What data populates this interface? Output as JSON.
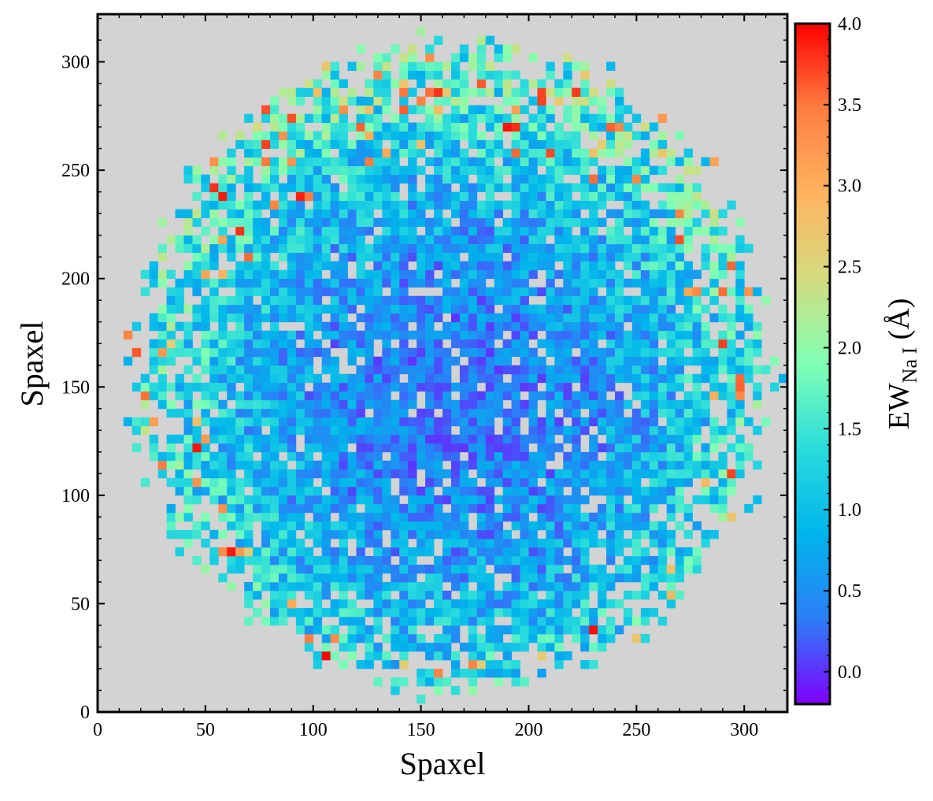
{
  "chart_data": {
    "type": "heatmap",
    "title": "",
    "xlabel": "Spaxel",
    "ylabel": "Spaxel",
    "xlim": [
      0,
      320
    ],
    "ylim": [
      0,
      322
    ],
    "xticks": [
      0,
      50,
      100,
      150,
      200,
      250,
      300
    ],
    "yticks": [
      0,
      50,
      100,
      150,
      200,
      250,
      300
    ],
    "grid": false,
    "background_color": "#d3d3d3",
    "pixel_size": 4,
    "colormap": "rainbow",
    "colorbar": {
      "label_main": "EW",
      "label_sub": "Na I",
      "label_unit": " (Å)",
      "range": [
        -0.2,
        4.0
      ],
      "ticks": [
        0.0,
        0.5,
        1.0,
        1.5,
        2.0,
        2.5,
        3.0,
        3.5,
        4.0
      ],
      "tick_labels": [
        "0.0",
        "0.5",
        "1.0",
        "1.5",
        "2.0",
        "2.5",
        "3.0",
        "3.5",
        "4.0"
      ],
      "colors": [
        "#8000ff",
        "#2c7ef7",
        "#00b5eb",
        "#2adcdc",
        "#80ffb4",
        "#d4dc7f",
        "#ffb360",
        "#ff7e41",
        "#ff0000"
      ]
    },
    "field": {
      "center": [
        165,
        160
      ],
      "radius": [
        146,
        148
      ],
      "core_center": [
        165,
        140
      ],
      "core_value": 0.35,
      "edge_value": 1.6,
      "noise": 0.55,
      "masked_fraction": 0.1,
      "random_seed": 7
    }
  }
}
